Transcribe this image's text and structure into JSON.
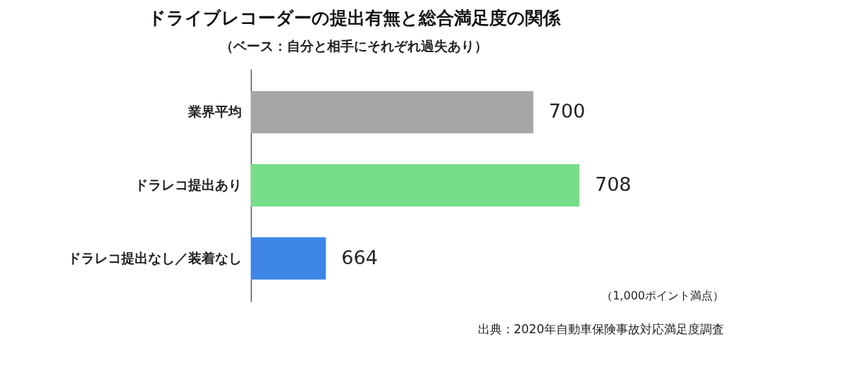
{
  "chart_data": {
    "type": "bar",
    "orientation": "horizontal",
    "title": "ドライブレコーダーの提出有無と総合満足度の関係",
    "subtitle": "（ベース：自分と相手にそれぞれ過失あり）",
    "categories": [
      "業界平均",
      "ドラレコ提出あり",
      "ドラレコ提出なし／装着なし"
    ],
    "values": [
      700,
      708,
      664
    ],
    "colors": [
      "#a6a6a6",
      "#77dd88",
      "#3d85e6"
    ],
    "xlim": [
      651,
      708
    ],
    "tick_labels": "y",
    "data_labels": true,
    "annotations": [
      "（1,000ポイント満点）",
      "出典：2020年自動車保険事故対応満足度調査"
    ]
  }
}
